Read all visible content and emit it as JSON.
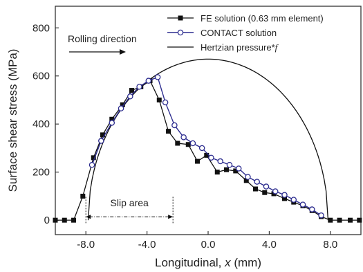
{
  "chart_data": {
    "type": "line",
    "xlabel_main": "Longitudinal, ",
    "xlabel_var": "x",
    "xlabel_unit": " (mm)",
    "ylabel": "Surface shear stress (MPa)",
    "xlim": [
      -10,
      10
    ],
    "ylim": [
      -60,
      890
    ],
    "x_ticks": [
      -8,
      -4,
      0,
      4,
      8
    ],
    "x_tick_labels": [
      "-8.0",
      "-4.0",
      "0.0",
      "4.0",
      "8.0"
    ],
    "y_ticks": [
      0,
      200,
      400,
      600,
      800
    ],
    "y_tick_labels": [
      "0",
      "200",
      "400",
      "600",
      "800"
    ],
    "legend": {
      "placement": "top-right"
    },
    "series": [
      {
        "name": "FE solution (0.63 mm element)",
        "color": "#111111",
        "marker": "square-filled",
        "x": [
          -10,
          -9.4,
          -8.8,
          -8.2,
          -7.5,
          -6.9,
          -6.3,
          -5.6,
          -5.0,
          -4.4,
          -3.8,
          -3.2,
          -2.6,
          -2.0,
          -1.3,
          -0.7,
          -0.1,
          0.6,
          1.2,
          1.8,
          2.5,
          3.1,
          3.7,
          4.3,
          5.0,
          5.6,
          6.2,
          6.8,
          7.4,
          8.0,
          8.6,
          9.3,
          9.9
        ],
        "y": [
          0,
          0,
          0,
          100,
          260,
          355,
          420,
          480,
          540,
          555,
          580,
          500,
          370,
          320,
          315,
          245,
          270,
          200,
          210,
          205,
          165,
          130,
          115,
          110,
          90,
          75,
          60,
          40,
          15,
          0,
          0,
          0,
          0
        ]
      },
      {
        "name": "CONTACT solution",
        "color": "#2d2d8f",
        "marker": "circle-open",
        "x": [
          -7.6,
          -7.0,
          -6.3,
          -5.7,
          -5.1,
          -4.5,
          -3.9,
          -3.3,
          -2.8,
          -2.2,
          -1.6,
          -1.0,
          -0.4,
          0.2,
          0.8,
          1.4,
          2.0,
          2.6,
          3.2,
          3.8,
          4.4,
          5.0,
          5.6,
          6.2,
          6.8,
          7.4
        ],
        "y": [
          230,
          330,
          405,
          465,
          515,
          555,
          580,
          595,
          490,
          395,
          345,
          320,
          300,
          260,
          245,
          230,
          215,
          180,
          160,
          140,
          120,
          105,
          85,
          65,
          45,
          20
        ]
      },
      {
        "name": "Hertzian pressure*f",
        "color": "#111111",
        "marker": "none",
        "shape": "semi-ellipse",
        "center": 0,
        "half_width": 7.85,
        "peak": 670
      }
    ],
    "annotations": {
      "rolling": "Rolling direction",
      "slip": "Slip area",
      "slip_range": [
        -8.0,
        -2.3
      ]
    }
  }
}
